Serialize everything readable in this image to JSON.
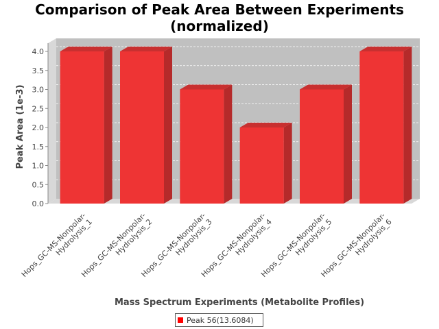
{
  "chart_data": {
    "type": "bar",
    "title_lines": [
      "Comparison of Peak Area Between Experiments",
      "(normalized)"
    ],
    "xlabel": "Mass Spectrum Experiments (Metabolite Profiles)",
    "ylabel": "Peak Area (1e-3)",
    "categories": [
      [
        "Hops_GC-MS-Nonpolar-",
        "Hydrolysis_1"
      ],
      [
        "Hops_GC-MS-Nonpolar-",
        "Hydrolysis_2"
      ],
      [
        "Hops_GC-MS-Nonpolar-",
        "Hydrolysis_3"
      ],
      [
        "Hops_GC-MS-Nonpolar-",
        "Hydrolysis_4"
      ],
      [
        "Hops_GC-MS-Nonpolar-",
        "Hydrolysis_5"
      ],
      [
        "Hops_GC-MS-Nonpolar-",
        "Hydrolysis_6"
      ]
    ],
    "series": [
      {
        "name": "Peak 56(13.6084)",
        "values": [
          4.0,
          4.0,
          3.0,
          2.0,
          3.0,
          4.0
        ],
        "color": "#ff0000"
      }
    ],
    "ylim": [
      0,
      4.0
    ],
    "yticks": [
      "0.0",
      "0.5",
      "1.0",
      "1.5",
      "2.0",
      "2.5",
      "3.0",
      "3.5",
      "4.0"
    ],
    "grid": true,
    "legend_position": "bottom",
    "plot_background": "#c0c0c0",
    "bar_face_color": "#ee3434",
    "bar_side_color": "#b52a2a",
    "bar_top_color": "#c83030"
  }
}
